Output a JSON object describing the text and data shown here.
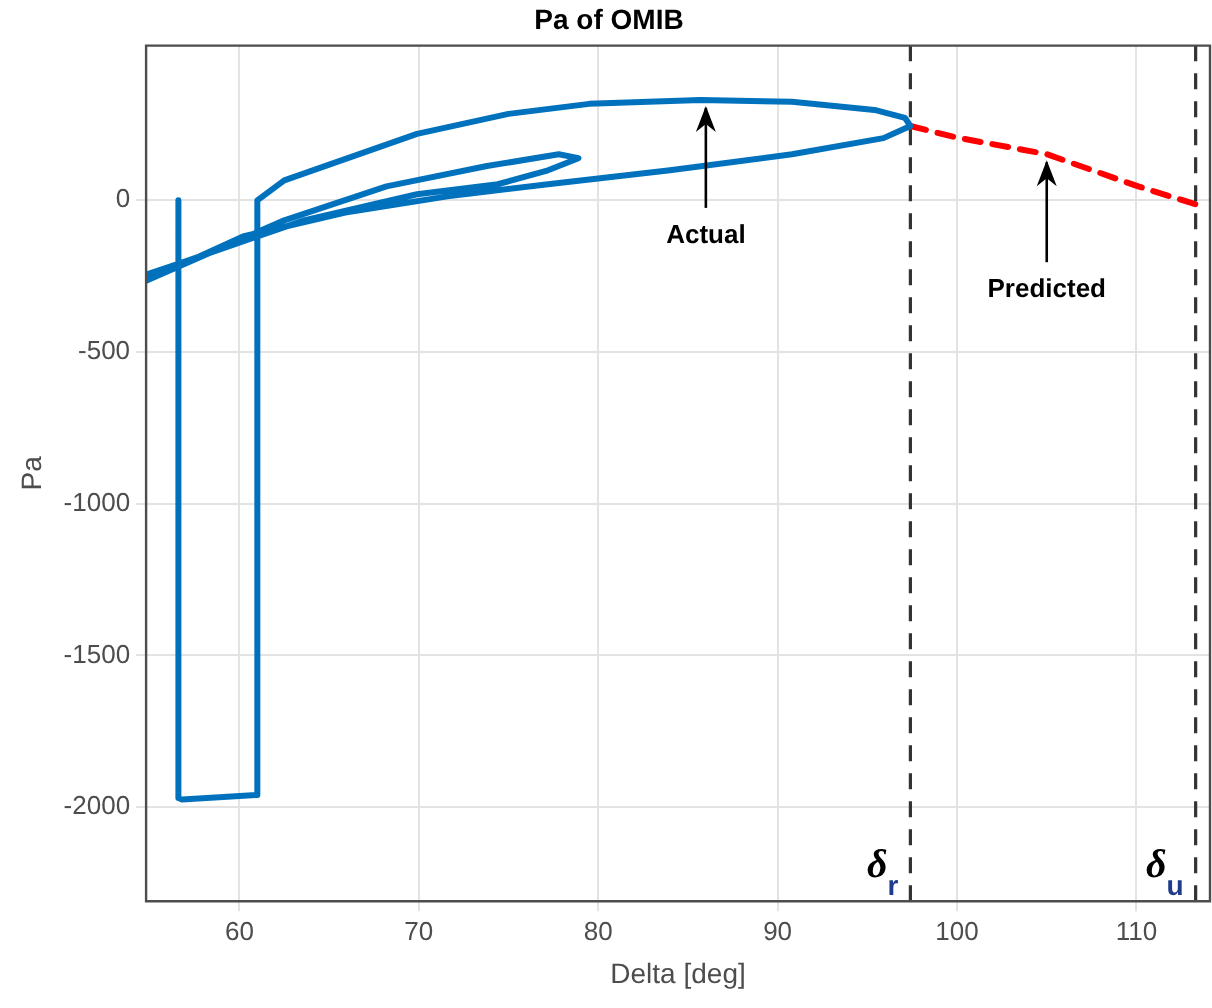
{
  "chart_data": {
    "type": "line",
    "title": "Pa of OMIB",
    "xlabel": "Delta [deg]",
    "ylabel": "Pa",
    "xlim": [
      54.8,
      114.1
    ],
    "ylim": [
      -2310,
      510
    ],
    "xticks": [
      60,
      70,
      80,
      90,
      100,
      110
    ],
    "yticks": [
      -2000,
      -1500,
      -1000,
      -500,
      0
    ],
    "grid": true,
    "legend": false,
    "marker": "none",
    "series": [
      {
        "color": "#0072bd",
        "line_style": "solid",
        "x": [
          56.6,
          56.6,
          56.8,
          61,
          61,
          62.5,
          69.9,
          75,
          79.5,
          85.7,
          90.8,
          95.4,
          97.1,
          97.4,
          95.9,
          90.8,
          84,
          77.2,
          71.6,
          65.9,
          60.2,
          54.8,
          62.5,
          68.2,
          73.8,
          77.8,
          78.9,
          77.2,
          74.4,
          69.9,
          63.6,
          56.8,
          54.8
        ],
        "values": [
          0,
          -1970,
          -1975,
          -1960,
          0,
          66,
          219,
          285,
          318,
          331,
          325,
          298,
          272,
          245,
          205,
          152,
          99,
          53,
          13,
          -40,
          -119,
          -265,
          -66,
          46,
          113,
          152,
          139,
          99,
          53,
          20,
          -66,
          -205,
          -245
        ]
      },
      {
        "color": "#ff0000",
        "line_style": "dashed",
        "x": [
          97.4,
          99.9,
          105,
          110.1,
          113.3
        ],
        "values": [
          245,
          208,
          152,
          46,
          -13
        ]
      }
    ],
    "ref_lines": [
      {
        "axis": "x",
        "value": 97.4,
        "label": "δ$_{r}$",
        "color": "#333333",
        "line_style": "dashed"
      },
      {
        "axis": "x",
        "value": 113.3,
        "label": "δ$_{u}$",
        "color": "#333333",
        "line_style": "dashed"
      }
    ],
    "annotations": [
      {
        "text": "Actual",
        "x": 86,
        "y": 331
      },
      {
        "text": "Predicted",
        "x": 105,
        "y": 152
      }
    ]
  }
}
